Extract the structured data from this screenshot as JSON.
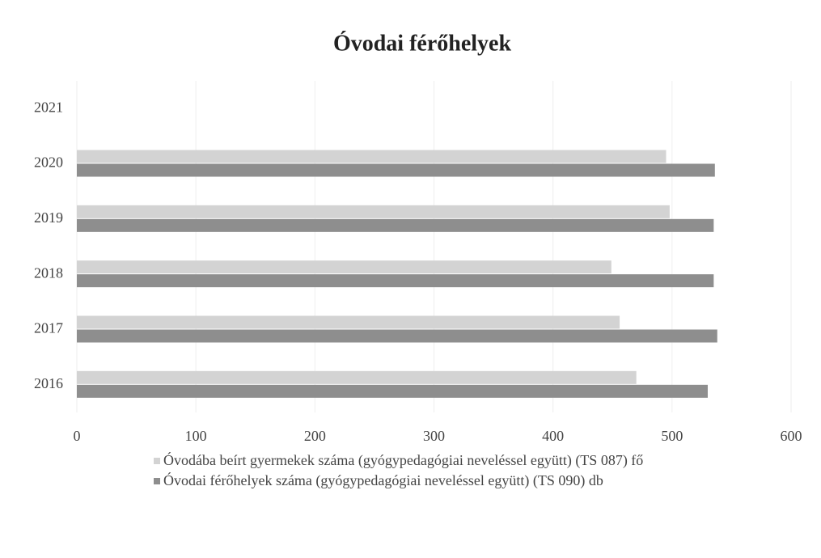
{
  "chart_data": {
    "type": "bar",
    "orientation": "horizontal",
    "title": "Óvodai férőhelyek",
    "categories": [
      "2016",
      "2017",
      "2018",
      "2019",
      "2020",
      "2021"
    ],
    "series": [
      {
        "name": "Óvodába beírt gyermekek száma (gyógypedagógiai neveléssel együtt) (TS 087) fő",
        "color": "#d3d3d3",
        "values": [
          470,
          456,
          449,
          498,
          495,
          null
        ]
      },
      {
        "name": "Óvodai férőhelyek száma (gyógypedagógiai neveléssel együtt) (TS 090) db",
        "color": "#8e8e8e",
        "values": [
          530,
          538,
          535,
          535,
          536,
          null
        ]
      }
    ],
    "xlim": [
      0,
      600
    ],
    "xticks": [
      0,
      100,
      200,
      300,
      400,
      500,
      600
    ],
    "grid": true,
    "legend": "bottom"
  }
}
